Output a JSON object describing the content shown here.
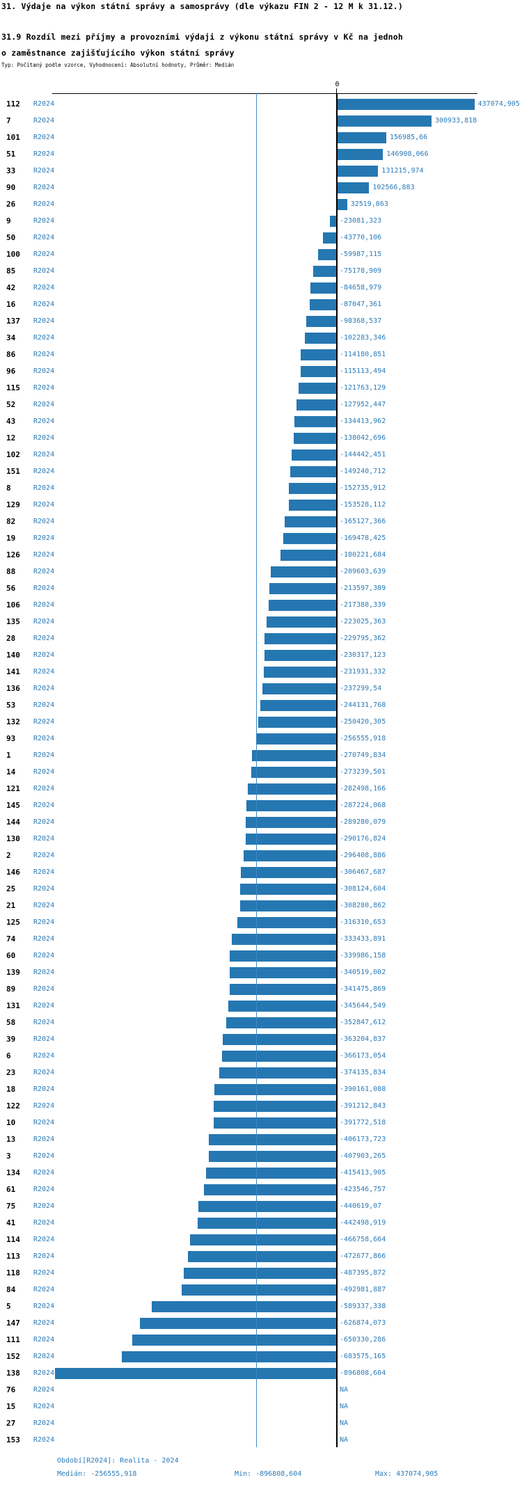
{
  "header": {
    "title": "31. Výdaje na výkon státní správy a samosprávy (dle výkazu FIN 2 - 12 M k 31.12.)",
    "subtitle_line1": "31.9 Rozdíl mezi příjmy a provozními výdaji z výkonu státní správy v Kč na jednoh",
    "subtitle_line2": "o zaměstnance zajišťujícího výkon státní správy",
    "meta": "Typ: Počítaný podle vzorce, Vyhodnocení: Absolutní hodnoty, Průměr: Medián"
  },
  "chart_data": {
    "type": "bar",
    "orientation": "horizontal",
    "title": "31.9 Rozdíl mezi příjmy a provozními výdaji z výkonu státní správy v Kč na jednoho zaměstnance zajišťujícího výkon státní správy",
    "series_name": "R2024",
    "x_axis": {
      "zero_label": "0"
    },
    "median_value": -256555.918,
    "min_value": -896808.604,
    "max_value": 437074.905,
    "na_label": "NA",
    "bar_color": "#2577b2",
    "median_line_color": "#3d88c4",
    "value_text_color": "#2c7bb8",
    "rows": [
      {
        "id": "112",
        "v": 437074.905,
        "d": "437074,905"
      },
      {
        "id": "7",
        "v": 300933.818,
        "d": "300933,818"
      },
      {
        "id": "101",
        "v": 156985.66,
        "d": "156985,66"
      },
      {
        "id": "51",
        "v": 146908.066,
        "d": "146908,066"
      },
      {
        "id": "33",
        "v": 131215.974,
        "d": "131215,974"
      },
      {
        "id": "90",
        "v": 102566.883,
        "d": "102566,883"
      },
      {
        "id": "26",
        "v": 32519.863,
        "d": "32519,863"
      },
      {
        "id": "9",
        "v": -23081.323,
        "d": "-23081,323"
      },
      {
        "id": "50",
        "v": -43770.106,
        "d": "-43770,106"
      },
      {
        "id": "100",
        "v": -59987.115,
        "d": "-59987,115"
      },
      {
        "id": "85",
        "v": -75178.909,
        "d": "-75178,909"
      },
      {
        "id": "42",
        "v": -84658.979,
        "d": "-84658,979"
      },
      {
        "id": "16",
        "v": -87047.361,
        "d": "-87047,361"
      },
      {
        "id": "137",
        "v": -98368.537,
        "d": "-98368,537"
      },
      {
        "id": "34",
        "v": -102283.346,
        "d": "-102283,346"
      },
      {
        "id": "86",
        "v": -114180.851,
        "d": "-114180,851"
      },
      {
        "id": "96",
        "v": -115113.494,
        "d": "-115113,494"
      },
      {
        "id": "115",
        "v": -121763.129,
        "d": "-121763,129"
      },
      {
        "id": "52",
        "v": -127952.447,
        "d": "-127952,447"
      },
      {
        "id": "43",
        "v": -134413.962,
        "d": "-134413,962"
      },
      {
        "id": "12",
        "v": -138042.696,
        "d": "-138042,696"
      },
      {
        "id": "102",
        "v": -144442.451,
        "d": "-144442,451"
      },
      {
        "id": "151",
        "v": -149240.712,
        "d": "-149240,712"
      },
      {
        "id": "8",
        "v": -152735.912,
        "d": "-152735,912"
      },
      {
        "id": "129",
        "v": -153528.112,
        "d": "-153528,112"
      },
      {
        "id": "82",
        "v": -165127.366,
        "d": "-165127,366"
      },
      {
        "id": "19",
        "v": -169478.425,
        "d": "-169478,425"
      },
      {
        "id": "126",
        "v": -180221.684,
        "d": "-180221,684"
      },
      {
        "id": "88",
        "v": -209603.639,
        "d": "-209603,639"
      },
      {
        "id": "56",
        "v": -213597.389,
        "d": "-213597,389"
      },
      {
        "id": "106",
        "v": -217388.339,
        "d": "-217388,339"
      },
      {
        "id": "135",
        "v": -223025.363,
        "d": "-223025,363"
      },
      {
        "id": "28",
        "v": -229795.362,
        "d": "-229795,362"
      },
      {
        "id": "140",
        "v": -230317.123,
        "d": "-230317,123"
      },
      {
        "id": "141",
        "v": -231931.332,
        "d": "-231931,332"
      },
      {
        "id": "136",
        "v": -237299.54,
        "d": "-237299,54"
      },
      {
        "id": "53",
        "v": -244131.768,
        "d": "-244131,768"
      },
      {
        "id": "132",
        "v": -250420.305,
        "d": "-250420,305"
      },
      {
        "id": "93",
        "v": -256555.918,
        "d": "-256555,918"
      },
      {
        "id": "1",
        "v": -270749.834,
        "d": "-270749,834"
      },
      {
        "id": "14",
        "v": -273239.501,
        "d": "-273239,501"
      },
      {
        "id": "121",
        "v": -282498.166,
        "d": "-282498,166"
      },
      {
        "id": "145",
        "v": -287224.068,
        "d": "-287224,068"
      },
      {
        "id": "144",
        "v": -289280.079,
        "d": "-289280,079"
      },
      {
        "id": "130",
        "v": -290176.824,
        "d": "-290176,824"
      },
      {
        "id": "2",
        "v": -296408.886,
        "d": "-296408,886"
      },
      {
        "id": "146",
        "v": -306467.687,
        "d": "-306467,687"
      },
      {
        "id": "25",
        "v": -308124.604,
        "d": "-308124,604"
      },
      {
        "id": "21",
        "v": -308280.862,
        "d": "-308280,862"
      },
      {
        "id": "125",
        "v": -316310.653,
        "d": "-316310,653"
      },
      {
        "id": "74",
        "v": -333433.891,
        "d": "-333433,891"
      },
      {
        "id": "60",
        "v": -339986.158,
        "d": "-339986,158"
      },
      {
        "id": "139",
        "v": -340519.002,
        "d": "-340519,002"
      },
      {
        "id": "89",
        "v": -341475.869,
        "d": "-341475,869"
      },
      {
        "id": "131",
        "v": -345644.549,
        "d": "-345644,549"
      },
      {
        "id": "58",
        "v": -352847.612,
        "d": "-352847,612"
      },
      {
        "id": "39",
        "v": -363204.837,
        "d": "-363204,837"
      },
      {
        "id": "6",
        "v": -366173.054,
        "d": "-366173,054"
      },
      {
        "id": "23",
        "v": -374135.834,
        "d": "-374135,834"
      },
      {
        "id": "18",
        "v": -390161.088,
        "d": "-390161,088"
      },
      {
        "id": "122",
        "v": -391212.843,
        "d": "-391212,843"
      },
      {
        "id": "10",
        "v": -391772.518,
        "d": "-391772,518"
      },
      {
        "id": "13",
        "v": -406173.723,
        "d": "-406173,723"
      },
      {
        "id": "3",
        "v": -407903.265,
        "d": "-407903,265"
      },
      {
        "id": "134",
        "v": -415413.905,
        "d": "-415413,905"
      },
      {
        "id": "61",
        "v": -423546.757,
        "d": "-423546,757"
      },
      {
        "id": "75",
        "v": -440619.07,
        "d": "-440619,07"
      },
      {
        "id": "41",
        "v": -442498.919,
        "d": "-442498,919"
      },
      {
        "id": "114",
        "v": -466758.664,
        "d": "-466758,664"
      },
      {
        "id": "113",
        "v": -472677.866,
        "d": "-472677,866"
      },
      {
        "id": "118",
        "v": -487395.872,
        "d": "-487395,872"
      },
      {
        "id": "84",
        "v": -492981.887,
        "d": "-492981,887"
      },
      {
        "id": "5",
        "v": -589337.338,
        "d": "-589337,338"
      },
      {
        "id": "147",
        "v": -626874.073,
        "d": "-626874,073"
      },
      {
        "id": "111",
        "v": -650330.286,
        "d": "-650330,286"
      },
      {
        "id": "152",
        "v": -683575.165,
        "d": "-683575,165"
      },
      {
        "id": "138",
        "v": -896808.604,
        "d": "-896808,604"
      },
      {
        "id": "76",
        "v": null,
        "d": "NA"
      },
      {
        "id": "15",
        "v": null,
        "d": "NA"
      },
      {
        "id": "27",
        "v": null,
        "d": "NA"
      },
      {
        "id": "153",
        "v": null,
        "d": "NA"
      }
    ]
  },
  "footer": {
    "period": "Období[R2024]: Realita - 2024",
    "median": "Medián: -256555,918",
    "min": "Min: -896808,604",
    "max": "Max: 437074,905"
  }
}
